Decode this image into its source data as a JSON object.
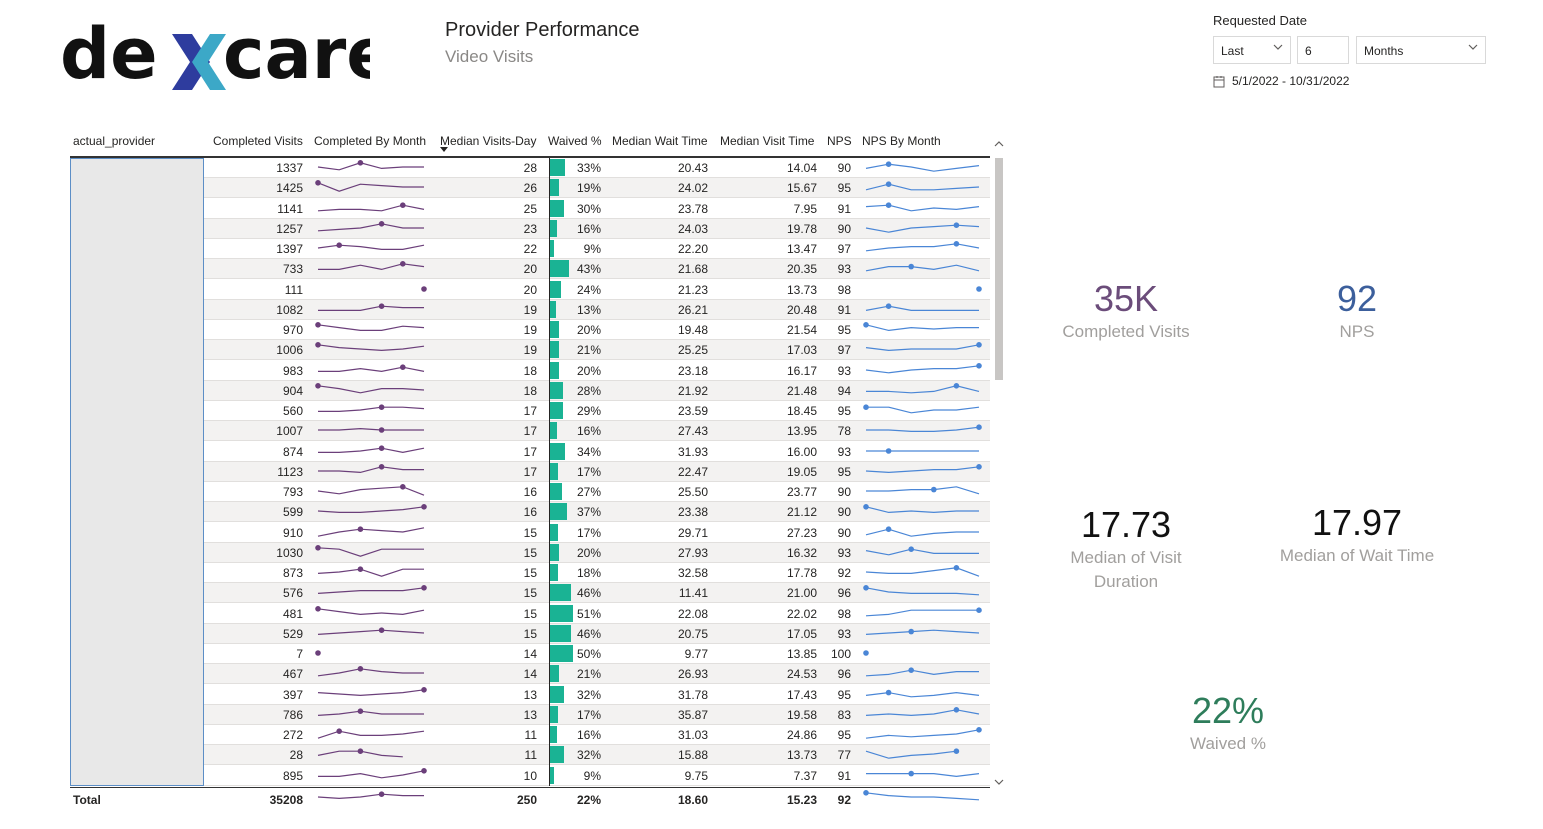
{
  "brand": {
    "logo_text": "dexcare"
  },
  "header": {
    "title": "Provider Performance",
    "subtitle": "Video Visits"
  },
  "filter": {
    "label": "Requested Date",
    "mode": "Last",
    "count": "6",
    "unit": "Months",
    "range": "5/1/2022 - 10/31/2022"
  },
  "table": {
    "columns": [
      "actual_provider",
      "Completed Visits",
      "Completed By Month",
      "Median Visits-Day",
      "Waived %",
      "Median Wait Time",
      "Median Visit Time",
      "NPS",
      "NPS By Month"
    ],
    "rows": [
      {
        "cv": "1337",
        "mvd": "28",
        "w": "33%",
        "wv": 33,
        "mwt": "20.43",
        "mvt": "14.04",
        "nps": "90",
        "cs": [
          0.5,
          0.7,
          0.2,
          0.6,
          0.5,
          0.5
        ],
        "ns": [
          0.6,
          0.3,
          0.5,
          0.8,
          0.6,
          0.4
        ],
        "cd": 2,
        "nd": 1
      },
      {
        "cv": "1425",
        "mvd": "26",
        "w": "19%",
        "wv": 19,
        "mwt": "24.02",
        "mvt": "15.67",
        "nps": "95",
        "cs": [
          0.2,
          0.8,
          0.3,
          0.4,
          0.5,
          0.5
        ],
        "ns": [
          0.7,
          0.3,
          0.7,
          0.7,
          0.6,
          0.5
        ],
        "cd": 0,
        "nd": 1
      },
      {
        "cv": "1141",
        "mvd": "25",
        "w": "30%",
        "wv": 30,
        "mwt": "23.78",
        "mvt": "7.95",
        "nps": "91",
        "cs": [
          0.7,
          0.6,
          0.6,
          0.7,
          0.3,
          0.6
        ],
        "ns": [
          0.4,
          0.3,
          0.7,
          0.5,
          0.6,
          0.4
        ],
        "cd": 4,
        "nd": 1
      },
      {
        "cv": "1257",
        "mvd": "23",
        "w": "16%",
        "wv": 16,
        "mwt": "24.03",
        "mvt": "19.78",
        "nps": "90",
        "cs": [
          0.7,
          0.6,
          0.5,
          0.2,
          0.5,
          0.5
        ],
        "ns": [
          0.5,
          0.8,
          0.5,
          0.4,
          0.3,
          0.4
        ],
        "cd": 3,
        "nd": 4
      },
      {
        "cv": "1397",
        "mvd": "22",
        "w": "9%",
        "wv": 9,
        "mwt": "22.20",
        "mvt": "13.47",
        "nps": "97",
        "cs": [
          0.5,
          0.3,
          0.4,
          0.6,
          0.6,
          0.3
        ],
        "ns": [
          0.7,
          0.5,
          0.4,
          0.4,
          0.2,
          0.5
        ],
        "cd": 1,
        "nd": 4
      },
      {
        "cv": "733",
        "mvd": "20",
        "w": "43%",
        "wv": 43,
        "mwt": "21.68",
        "mvt": "20.35",
        "nps": "93",
        "cs": [
          0.6,
          0.6,
          0.3,
          0.6,
          0.2,
          0.4
        ],
        "ns": [
          0.7,
          0.4,
          0.4,
          0.6,
          0.3,
          0.7
        ],
        "cd": 4,
        "nd": 2
      },
      {
        "cv": "111",
        "mvd": "20",
        "w": "24%",
        "wv": 24,
        "mwt": "21.23",
        "mvt": "13.73",
        "nps": "98",
        "cs": [
          null,
          null,
          null,
          null,
          null,
          0.5
        ],
        "ns": [
          null,
          null,
          null,
          null,
          null,
          0.5
        ],
        "cd": 5,
        "nd": 5
      },
      {
        "cv": "1082",
        "mvd": "19",
        "w": "13%",
        "wv": 13,
        "mwt": "26.21",
        "mvt": "20.48",
        "nps": "91",
        "cs": [
          0.6,
          0.6,
          0.6,
          0.3,
          0.4,
          0.4
        ],
        "ns": [
          0.6,
          0.3,
          0.6,
          0.6,
          0.6,
          0.6
        ],
        "cd": 3,
        "nd": 1
      },
      {
        "cv": "970",
        "mvd": "19",
        "w": "20%",
        "wv": 20,
        "mwt": "19.48",
        "mvt": "21.54",
        "nps": "95",
        "cs": [
          0.2,
          0.4,
          0.6,
          0.6,
          0.3,
          0.4
        ],
        "ns": [
          0.2,
          0.6,
          0.4,
          0.5,
          0.4,
          0.4
        ],
        "cd": 0,
        "nd": 0
      },
      {
        "cv": "1006",
        "mvd": "19",
        "w": "21%",
        "wv": 21,
        "mwt": "25.25",
        "mvt": "17.03",
        "nps": "97",
        "cs": [
          0.2,
          0.4,
          0.5,
          0.6,
          0.5,
          0.3
        ],
        "ns": [
          0.4,
          0.6,
          0.5,
          0.5,
          0.5,
          0.2
        ],
        "cd": 0,
        "nd": 5
      },
      {
        "cv": "983",
        "mvd": "18",
        "w": "20%",
        "wv": 20,
        "mwt": "23.18",
        "mvt": "16.17",
        "nps": "93",
        "cs": [
          0.6,
          0.6,
          0.4,
          0.6,
          0.3,
          0.6
        ],
        "ns": [
          0.5,
          0.7,
          0.5,
          0.4,
          0.4,
          0.2
        ],
        "cd": 4,
        "nd": 5
      },
      {
        "cv": "904",
        "mvd": "18",
        "w": "28%",
        "wv": 28,
        "mwt": "21.92",
        "mvt": "21.48",
        "nps": "94",
        "cs": [
          0.2,
          0.4,
          0.7,
          0.4,
          0.4,
          0.5
        ],
        "ns": [
          0.6,
          0.6,
          0.7,
          0.6,
          0.2,
          0.6
        ],
        "cd": 0,
        "nd": 4
      },
      {
        "cv": "560",
        "mvd": "17",
        "w": "29%",
        "wv": 29,
        "mwt": "23.59",
        "mvt": "18.45",
        "nps": "95",
        "cs": [
          0.6,
          0.6,
          0.5,
          0.3,
          0.3,
          0.4
        ],
        "ns": [
          0.3,
          0.3,
          0.7,
          0.5,
          0.5,
          0.3
        ],
        "cd": 3,
        "nd": 0
      },
      {
        "cv": "1007",
        "mvd": "17",
        "w": "16%",
        "wv": 16,
        "mwt": "27.43",
        "mvt": "13.95",
        "nps": "78",
        "cs": [
          0.5,
          0.5,
          0.4,
          0.5,
          0.5,
          0.5
        ],
        "ns": [
          0.5,
          0.5,
          0.6,
          0.6,
          0.5,
          0.3
        ],
        "cd": 3,
        "nd": 5
      },
      {
        "cv": "874",
        "mvd": "17",
        "w": "34%",
        "wv": 34,
        "mwt": "31.93",
        "mvt": "16.00",
        "nps": "93",
        "cs": [
          0.6,
          0.6,
          0.5,
          0.3,
          0.6,
          0.3
        ],
        "ns": [
          0.5,
          0.5,
          0.5,
          0.5,
          0.5,
          0.5
        ],
        "cd": 3,
        "nd": 1
      },
      {
        "cv": "1123",
        "mvd": "17",
        "w": "17%",
        "wv": 17,
        "mwt": "22.47",
        "mvt": "19.05",
        "nps": "95",
        "cs": [
          0.5,
          0.5,
          0.6,
          0.2,
          0.4,
          0.4
        ],
        "ns": [
          0.5,
          0.6,
          0.5,
          0.4,
          0.4,
          0.2
        ],
        "cd": 3,
        "nd": 5
      },
      {
        "cv": "793",
        "mvd": "16",
        "w": "27%",
        "wv": 27,
        "mwt": "25.50",
        "mvt": "23.77",
        "nps": "90",
        "cs": [
          0.5,
          0.7,
          0.4,
          0.3,
          0.2,
          0.8
        ],
        "ns": [
          0.5,
          0.5,
          0.4,
          0.4,
          0.2,
          0.7
        ],
        "cd": 4,
        "nd": 3
      },
      {
        "cv": "599",
        "mvd": "16",
        "w": "37%",
        "wv": 37,
        "mwt": "23.38",
        "mvt": "21.12",
        "nps": "90",
        "cs": [
          0.5,
          0.6,
          0.6,
          0.5,
          0.4,
          0.2
        ],
        "ns": [
          0.2,
          0.6,
          0.5,
          0.6,
          0.5,
          0.5
        ],
        "cd": 5,
        "nd": 0
      },
      {
        "cv": "910",
        "mvd": "15",
        "w": "17%",
        "wv": 17,
        "mwt": "29.71",
        "mvt": "27.23",
        "nps": "90",
        "cs": [
          0.8,
          0.5,
          0.3,
          0.4,
          0.5,
          0.2
        ],
        "ns": [
          0.7,
          0.3,
          0.8,
          0.6,
          0.5,
          0.5
        ],
        "cd": 2,
        "nd": 1
      },
      {
        "cv": "1030",
        "mvd": "15",
        "w": "20%",
        "wv": 20,
        "mwt": "27.93",
        "mvt": "16.32",
        "nps": "93",
        "cs": [
          0.2,
          0.3,
          0.8,
          0.3,
          0.3,
          0.3
        ],
        "ns": [
          0.4,
          0.7,
          0.3,
          0.6,
          0.6,
          0.6
        ],
        "cd": 0,
        "nd": 2
      },
      {
        "cv": "873",
        "mvd": "15",
        "w": "18%",
        "wv": 18,
        "mwt": "32.58",
        "mvt": "17.78",
        "nps": "92",
        "cs": [
          0.6,
          0.5,
          0.3,
          0.8,
          0.3,
          0.3
        ],
        "ns": [
          0.5,
          0.6,
          0.6,
          0.4,
          0.2,
          0.8
        ],
        "cd": 2,
        "nd": 4
      },
      {
        "cv": "576",
        "mvd": "15",
        "w": "46%",
        "wv": 46,
        "mwt": "11.41",
        "mvt": "21.00",
        "nps": "96",
        "cs": [
          0.6,
          0.5,
          0.4,
          0.4,
          0.4,
          0.2
        ],
        "ns": [
          0.2,
          0.5,
          0.6,
          0.6,
          0.6,
          0.7
        ],
        "cd": 5,
        "nd": 0
      },
      {
        "cv": "481",
        "mvd": "15",
        "w": "51%",
        "wv": 51,
        "mwt": "22.08",
        "mvt": "22.02",
        "nps": "98",
        "cs": [
          0.2,
          0.4,
          0.6,
          0.5,
          0.6,
          0.3
        ],
        "ns": [
          0.7,
          0.6,
          0.3,
          0.3,
          0.3,
          0.3
        ],
        "cd": 0,
        "nd": 5
      },
      {
        "cv": "529",
        "mvd": "15",
        "w": "46%",
        "wv": 46,
        "mwt": "20.75",
        "mvt": "17.05",
        "nps": "93",
        "cs": [
          0.6,
          0.5,
          0.4,
          0.3,
          0.4,
          0.5
        ],
        "ns": [
          0.6,
          0.5,
          0.4,
          0.3,
          0.4,
          0.5
        ],
        "cd": 3,
        "nd": 2
      },
      {
        "cv": "7",
        "mvd": "14",
        "w": "50%",
        "wv": 50,
        "mwt": "9.77",
        "mvt": "13.85",
        "nps": "100",
        "cs": [
          0.5,
          null,
          null,
          null,
          null,
          null
        ],
        "ns": [
          0.5,
          null,
          null,
          null,
          null,
          null
        ],
        "cd": 0,
        "nd": 0
      },
      {
        "cv": "467",
        "mvd": "14",
        "w": "21%",
        "wv": 21,
        "mwt": "26.93",
        "mvt": "24.53",
        "nps": "96",
        "cs": [
          0.7,
          0.5,
          0.2,
          0.4,
          0.5,
          0.5
        ],
        "ns": [
          0.7,
          0.6,
          0.3,
          0.6,
          0.4,
          0.4
        ],
        "cd": 2,
        "nd": 2
      },
      {
        "cv": "397",
        "mvd": "13",
        "w": "32%",
        "wv": 32,
        "mwt": "31.78",
        "mvt": "17.43",
        "nps": "95",
        "cs": [
          0.4,
          0.5,
          0.6,
          0.5,
          0.4,
          0.2
        ],
        "ns": [
          0.6,
          0.4,
          0.7,
          0.6,
          0.4,
          0.6
        ],
        "cd": 5,
        "nd": 1
      },
      {
        "cv": "786",
        "mvd": "13",
        "w": "17%",
        "wv": 17,
        "mwt": "35.87",
        "mvt": "19.58",
        "nps": "83",
        "cs": [
          0.6,
          0.5,
          0.3,
          0.5,
          0.5,
          0.5
        ],
        "ns": [
          0.6,
          0.5,
          0.6,
          0.5,
          0.2,
          0.5
        ],
        "cd": 2,
        "nd": 4
      },
      {
        "cv": "272",
        "mvd": "11",
        "w": "16%",
        "wv": 16,
        "mwt": "31.03",
        "mvt": "24.86",
        "nps": "95",
        "cs": [
          0.8,
          0.3,
          0.6,
          0.6,
          0.5,
          0.3
        ],
        "ns": [
          0.8,
          0.6,
          0.7,
          0.6,
          0.5,
          0.2
        ],
        "cd": 1,
        "nd": 5
      },
      {
        "cv": "28",
        "mvd": "11",
        "w": "32%",
        "wv": 32,
        "mwt": "15.88",
        "mvt": "13.73",
        "nps": "77",
        "cs": [
          0.6,
          0.3,
          0.3,
          0.6,
          0.7,
          null
        ],
        "ns": [
          0.3,
          0.8,
          0.6,
          0.5,
          0.3,
          null
        ],
        "cd": 2,
        "nd": 4
      },
      {
        "cv": "895",
        "mvd": "10",
        "w": "9%",
        "wv": 9,
        "mwt": "9.75",
        "mvt": "7.37",
        "nps": "91",
        "cs": [
          0.6,
          0.6,
          0.4,
          0.7,
          0.5,
          0.2
        ],
        "ns": [
          0.4,
          0.4,
          0.4,
          0.4,
          0.6,
          0.4
        ],
        "cd": 5,
        "nd": 2
      }
    ],
    "total": {
      "label": "Total",
      "cv": "35208",
      "mvd": "250",
      "w": "22%",
      "mwt": "18.60",
      "mvt": "15.23",
      "nps": "92",
      "cs": [
        0.5,
        0.6,
        0.5,
        0.3,
        0.4,
        0.4
      ],
      "ns": [
        0.2,
        0.4,
        0.5,
        0.5,
        0.6,
        0.7
      ],
      "cd": 3,
      "nd": 0
    }
  },
  "kpis": {
    "completed": {
      "value": "35K",
      "label": "Completed Visits",
      "color": "#6b4c7a"
    },
    "nps": {
      "value": "92",
      "label": "NPS",
      "color": "#3c5f9c"
    },
    "visit_duration": {
      "value": "17.73",
      "label": "Median of Visit Duration",
      "color": "#111111"
    },
    "wait_time": {
      "value": "17.97",
      "label": "Median of Wait Time",
      "color": "#111111"
    },
    "waived": {
      "value": "22%",
      "label": "Waived %",
      "color": "#2e7d5b"
    }
  },
  "colors": {
    "accent_bar": "#1ab394",
    "spark_purple": "#6b3f7a",
    "spark_blue": "#4a86d6"
  }
}
